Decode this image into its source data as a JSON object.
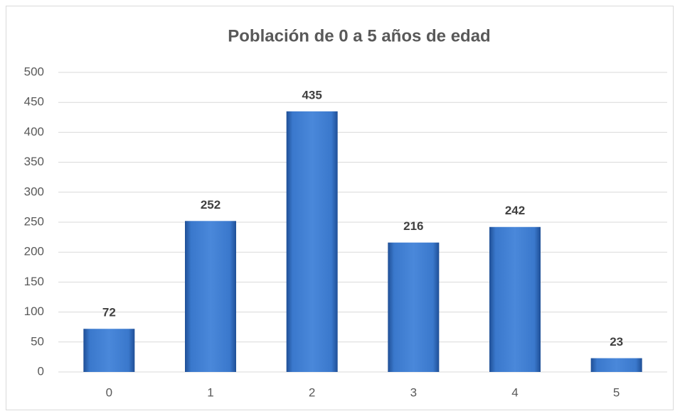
{
  "chart_data": {
    "type": "bar",
    "title": "Población de 0 a 5 años de edad",
    "categories": [
      "0",
      "1",
      "2",
      "3",
      "4",
      "5"
    ],
    "values": [
      72,
      252,
      435,
      216,
      242,
      23
    ],
    "color": "#2f6cc0",
    "ylim": [
      0,
      500
    ],
    "yticks": [
      0,
      50,
      100,
      150,
      200,
      250,
      300,
      350,
      400,
      450,
      500
    ],
    "grid": true
  }
}
